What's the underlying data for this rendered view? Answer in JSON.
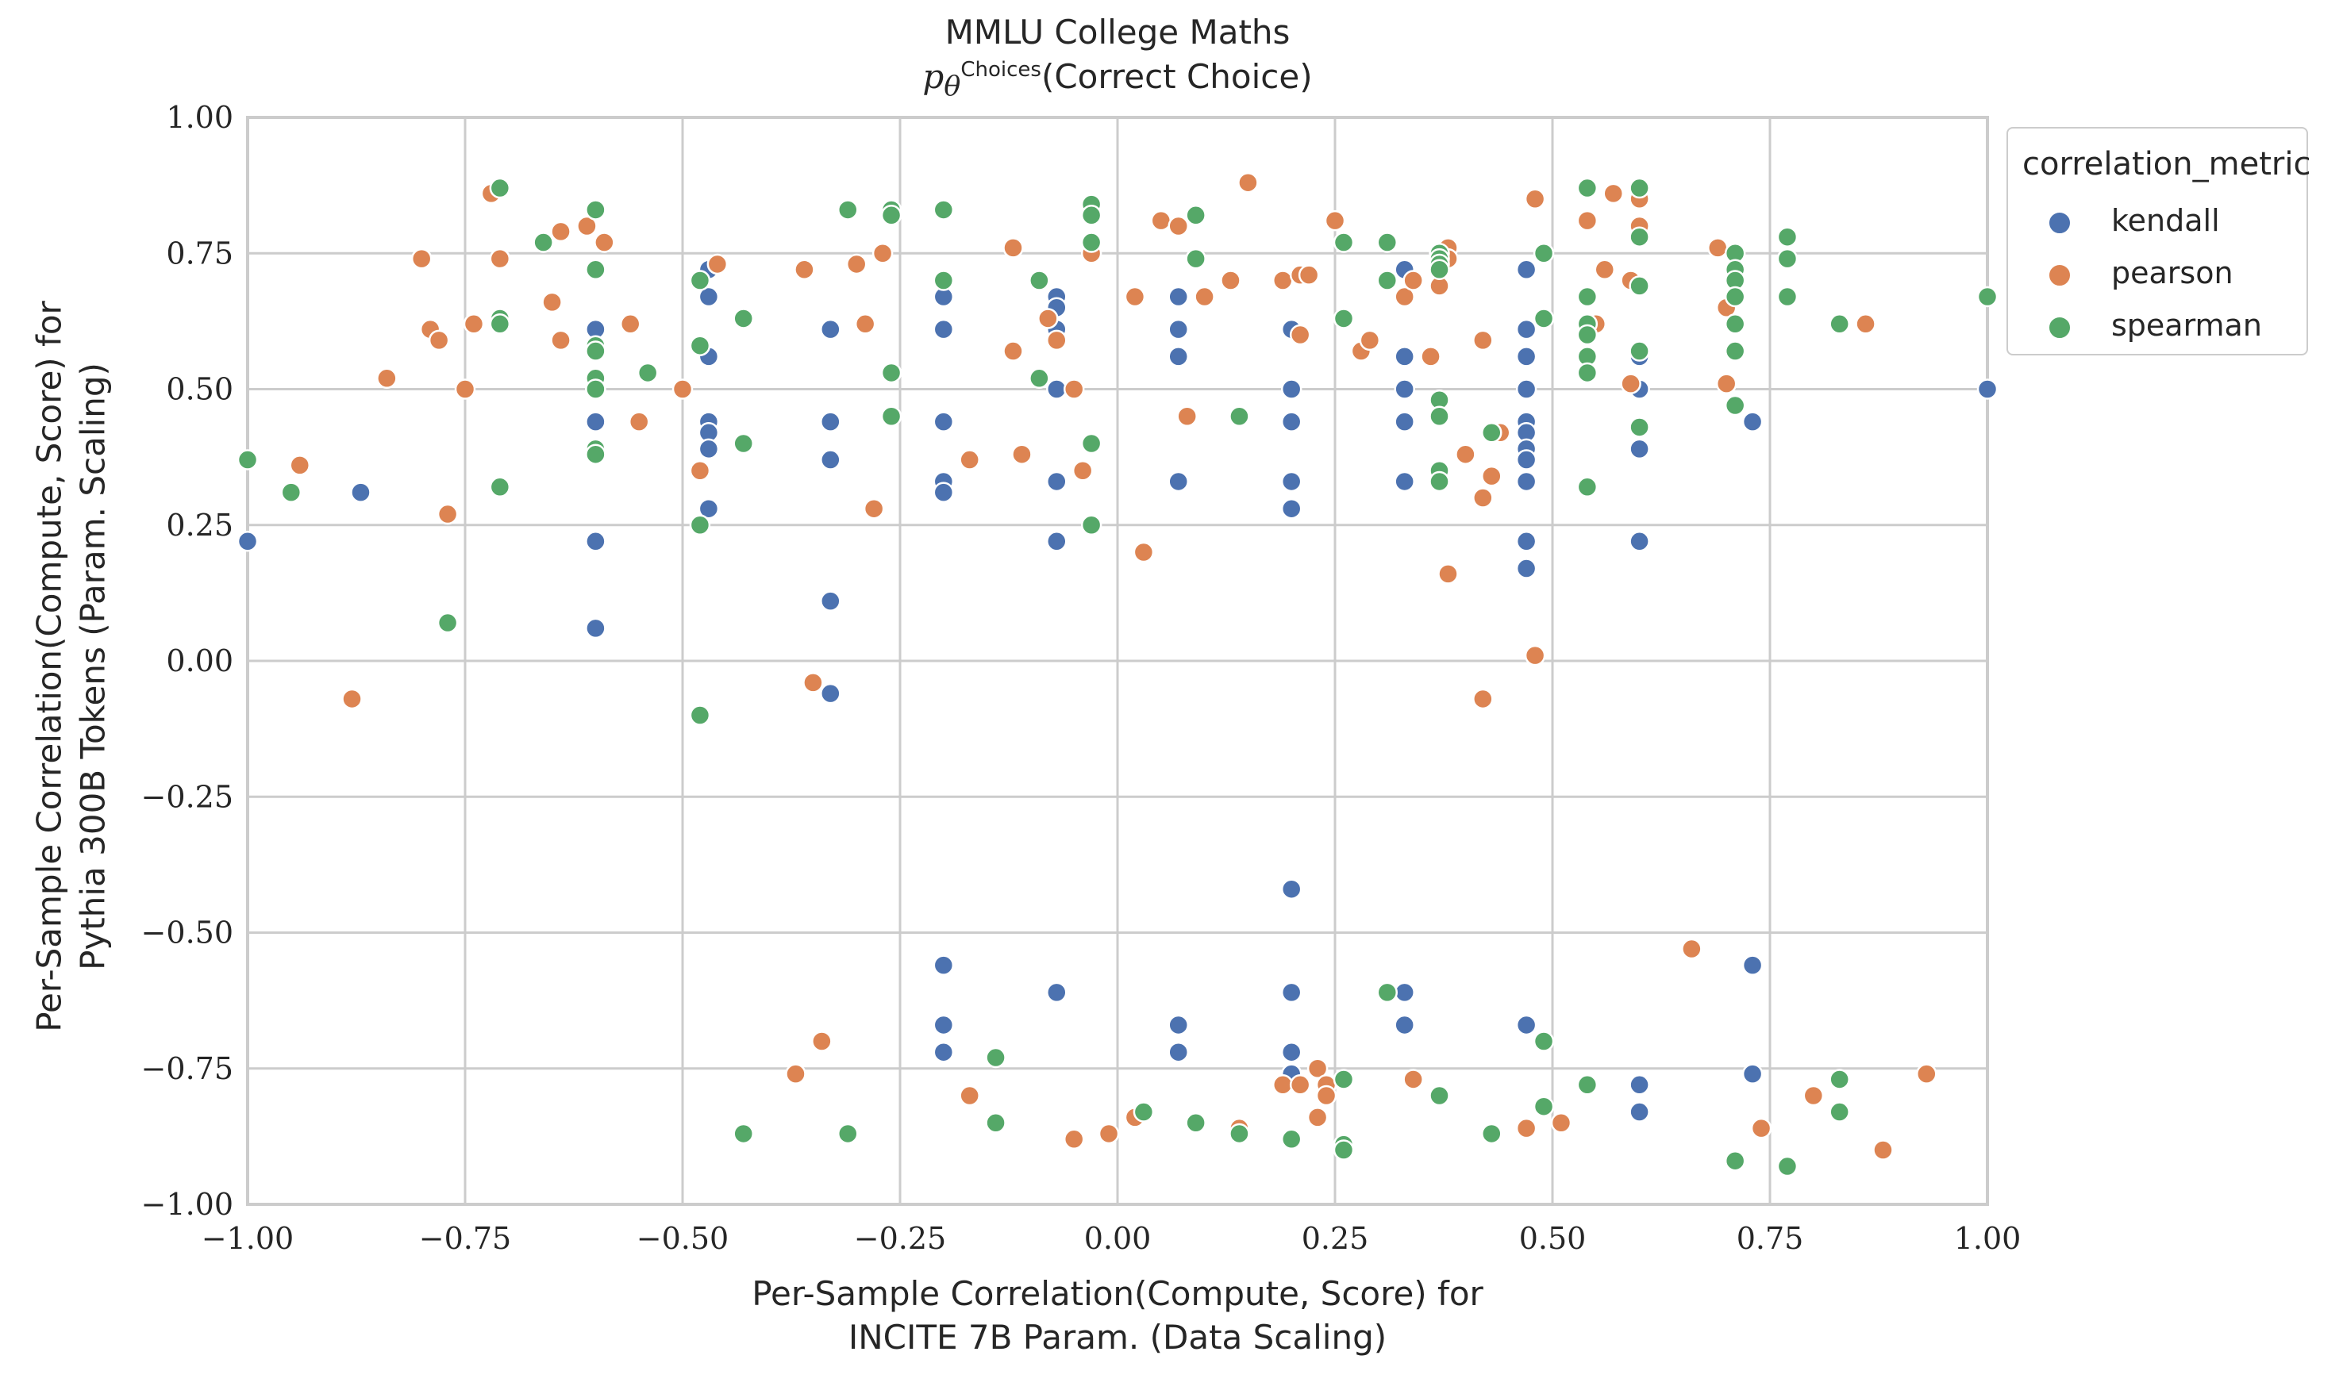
{
  "chart_data": {
    "type": "scatter",
    "title": "MMLU College Maths",
    "subtitle_math": "p",
    "subtitle_sub": "θ",
    "subtitle_sup": "Choices",
    "subtitle_text": "(Correct Choice)",
    "xlabel_line1": "Per-Sample Correlation(Compute, Score) for",
    "xlabel_line2": "INCITE 7B Param. (Data Scaling)",
    "ylabel_line1": "Per-Sample Correlation(Compute, Score) for",
    "ylabel_line2": "Pythia 300B Tokens (Param. Scaling)",
    "xlim": [
      -1.0,
      1.0
    ],
    "ylim": [
      -1.0,
      1.0
    ],
    "xticks": [
      "−1.00",
      "−0.75",
      "−0.50",
      "−0.25",
      "0.00",
      "0.25",
      "0.50",
      "0.75",
      "1.00"
    ],
    "yticks": [
      "1.00",
      "0.75",
      "0.50",
      "0.25",
      "0.00",
      "−0.25",
      "−0.50",
      "−0.75",
      "−1.00"
    ],
    "grid": true,
    "legend": {
      "title": "correlation_metric",
      "placement": "outside-top-right"
    },
    "series": [
      {
        "name": "kendall",
        "color": "#4c72b0",
        "points": [
          [
            -1.0,
            0.22
          ],
          [
            -0.87,
            0.31
          ],
          [
            -0.6,
            0.61
          ],
          [
            -0.6,
            0.5
          ],
          [
            -0.6,
            0.44
          ],
          [
            -0.6,
            0.22
          ],
          [
            -0.6,
            0.06
          ],
          [
            -0.6,
            0.39
          ],
          [
            -0.47,
            0.72
          ],
          [
            -0.47,
            0.67
          ],
          [
            -0.47,
            0.56
          ],
          [
            -0.47,
            0.44
          ],
          [
            -0.47,
            0.42
          ],
          [
            -0.47,
            0.39
          ],
          [
            -0.47,
            0.28
          ],
          [
            -0.33,
            0.61
          ],
          [
            -0.33,
            0.44
          ],
          [
            -0.33,
            0.37
          ],
          [
            -0.33,
            0.11
          ],
          [
            -0.33,
            -0.06
          ],
          [
            -0.2,
            0.67
          ],
          [
            -0.2,
            0.61
          ],
          [
            -0.2,
            0.44
          ],
          [
            -0.2,
            0.33
          ],
          [
            -0.2,
            0.31
          ],
          [
            -0.2,
            -0.56
          ],
          [
            -0.2,
            -0.67
          ],
          [
            -0.2,
            -0.72
          ],
          [
            -0.07,
            0.67
          ],
          [
            -0.07,
            0.65
          ],
          [
            -0.07,
            0.61
          ],
          [
            -0.07,
            0.5
          ],
          [
            -0.07,
            0.33
          ],
          [
            -0.07,
            0.22
          ],
          [
            -0.07,
            -0.61
          ],
          [
            0.07,
            0.67
          ],
          [
            0.07,
            0.61
          ],
          [
            0.07,
            0.56
          ],
          [
            0.07,
            0.33
          ],
          [
            0.07,
            -0.67
          ],
          [
            0.07,
            -0.72
          ],
          [
            0.2,
            0.61
          ],
          [
            0.2,
            0.5
          ],
          [
            0.2,
            0.44
          ],
          [
            0.2,
            0.33
          ],
          [
            0.2,
            0.28
          ],
          [
            0.2,
            -0.42
          ],
          [
            0.2,
            -0.61
          ],
          [
            0.2,
            -0.72
          ],
          [
            0.2,
            -0.76
          ],
          [
            0.33,
            0.72
          ],
          [
            0.33,
            0.56
          ],
          [
            0.33,
            0.5
          ],
          [
            0.33,
            0.44
          ],
          [
            0.33,
            0.33
          ],
          [
            0.33,
            -0.61
          ],
          [
            0.33,
            -0.67
          ],
          [
            0.47,
            0.72
          ],
          [
            0.47,
            0.61
          ],
          [
            0.47,
            0.56
          ],
          [
            0.47,
            0.5
          ],
          [
            0.47,
            0.44
          ],
          [
            0.47,
            0.42
          ],
          [
            0.47,
            0.39
          ],
          [
            0.47,
            0.37
          ],
          [
            0.47,
            0.33
          ],
          [
            0.47,
            0.22
          ],
          [
            0.47,
            0.17
          ],
          [
            0.47,
            -0.67
          ],
          [
            0.6,
            0.56
          ],
          [
            0.6,
            0.5
          ],
          [
            0.6,
            0.39
          ],
          [
            0.6,
            0.22
          ],
          [
            0.6,
            -0.78
          ],
          [
            0.6,
            -0.83
          ],
          [
            0.73,
            0.44
          ],
          [
            0.73,
            -0.56
          ],
          [
            0.73,
            -0.76
          ],
          [
            1.0,
            0.5
          ]
        ]
      },
      {
        "name": "pearson",
        "color": "#dd8452",
        "points": [
          [
            -0.94,
            0.36
          ],
          [
            -0.88,
            -0.07
          ],
          [
            -0.84,
            0.52
          ],
          [
            -0.8,
            0.74
          ],
          [
            -0.79,
            0.61
          ],
          [
            -0.78,
            0.59
          ],
          [
            -0.77,
            0.27
          ],
          [
            -0.75,
            0.5
          ],
          [
            -0.74,
            0.62
          ],
          [
            -0.72,
            0.86
          ],
          [
            -0.71,
            0.74
          ],
          [
            -0.65,
            0.66
          ],
          [
            -0.64,
            0.79
          ],
          [
            -0.64,
            0.59
          ],
          [
            -0.61,
            0.8
          ],
          [
            -0.59,
            0.77
          ],
          [
            -0.56,
            0.62
          ],
          [
            -0.55,
            0.44
          ],
          [
            -0.5,
            0.5
          ],
          [
            -0.48,
            0.35
          ],
          [
            -0.46,
            0.73
          ],
          [
            -0.36,
            0.72
          ],
          [
            -0.35,
            -0.04
          ],
          [
            -0.34,
            -0.7
          ],
          [
            -0.37,
            -0.76
          ],
          [
            -0.3,
            0.73
          ],
          [
            -0.29,
            0.62
          ],
          [
            -0.28,
            0.28
          ],
          [
            -0.27,
            0.75
          ],
          [
            -0.17,
            0.37
          ],
          [
            -0.12,
            0.76
          ],
          [
            -0.11,
            0.38
          ],
          [
            -0.12,
            0.57
          ],
          [
            -0.08,
            0.63
          ],
          [
            -0.07,
            0.59
          ],
          [
            -0.05,
            0.5
          ],
          [
            -0.04,
            0.35
          ],
          [
            -0.03,
            0.75
          ],
          [
            -0.17,
            -0.8
          ],
          [
            -0.05,
            -0.88
          ],
          [
            -0.01,
            -0.87
          ],
          [
            0.02,
            -0.84
          ],
          [
            0.02,
            0.67
          ],
          [
            0.03,
            0.2
          ],
          [
            0.05,
            0.81
          ],
          [
            0.07,
            0.8
          ],
          [
            0.08,
            0.45
          ],
          [
            0.1,
            0.67
          ],
          [
            0.13,
            0.7
          ],
          [
            0.15,
            0.88
          ],
          [
            0.14,
            -0.86
          ],
          [
            0.19,
            0.7
          ],
          [
            0.21,
            0.6
          ],
          [
            0.21,
            0.71
          ],
          [
            0.22,
            0.71
          ],
          [
            0.25,
            0.81
          ],
          [
            0.28,
            0.57
          ],
          [
            0.29,
            0.59
          ],
          [
            0.19,
            -0.78
          ],
          [
            0.21,
            -0.78
          ],
          [
            0.23,
            -0.84
          ],
          [
            0.23,
            -0.75
          ],
          [
            0.24,
            -0.78
          ],
          [
            0.24,
            -0.8
          ],
          [
            0.33,
            0.67
          ],
          [
            0.34,
            0.7
          ],
          [
            0.34,
            -0.77
          ],
          [
            0.36,
            0.56
          ],
          [
            0.37,
            0.69
          ],
          [
            0.38,
            0.76
          ],
          [
            0.38,
            0.74
          ],
          [
            0.38,
            0.16
          ],
          [
            0.4,
            0.38
          ],
          [
            0.42,
            0.59
          ],
          [
            0.42,
            0.3
          ],
          [
            0.42,
            -0.07
          ],
          [
            0.43,
            0.34
          ],
          [
            0.44,
            0.42
          ],
          [
            0.48,
            0.85
          ],
          [
            0.48,
            0.01
          ],
          [
            0.47,
            -0.86
          ],
          [
            0.51,
            -0.85
          ],
          [
            0.55,
            0.62
          ],
          [
            0.56,
            0.72
          ],
          [
            0.57,
            0.86
          ],
          [
            0.59,
            0.7
          ],
          [
            0.59,
            0.51
          ],
          [
            0.6,
            0.8
          ],
          [
            0.6,
            0.85
          ],
          [
            0.54,
            0.81
          ],
          [
            0.66,
            -0.53
          ],
          [
            0.69,
            0.76
          ],
          [
            0.7,
            0.65
          ],
          [
            0.7,
            0.51
          ],
          [
            0.71,
            0.62
          ],
          [
            0.74,
            -0.86
          ],
          [
            0.8,
            -0.8
          ],
          [
            0.86,
            0.62
          ],
          [
            0.88,
            -0.9
          ],
          [
            0.93,
            -0.76
          ]
        ]
      },
      {
        "name": "spearman",
        "color": "#55a868",
        "points": [
          [
            -1.0,
            0.37
          ],
          [
            -0.95,
            0.31
          ],
          [
            -0.77,
            0.07
          ],
          [
            -0.71,
            0.87
          ],
          [
            -0.71,
            0.63
          ],
          [
            -0.71,
            0.62
          ],
          [
            -0.71,
            0.32
          ],
          [
            -0.66,
            0.77
          ],
          [
            -0.6,
            0.83
          ],
          [
            -0.6,
            0.72
          ],
          [
            -0.6,
            0.58
          ],
          [
            -0.6,
            0.57
          ],
          [
            -0.6,
            0.52
          ],
          [
            -0.6,
            0.5
          ],
          [
            -0.6,
            0.39
          ],
          [
            -0.6,
            0.38
          ],
          [
            -0.54,
            0.53
          ],
          [
            -0.48,
            0.7
          ],
          [
            -0.48,
            0.58
          ],
          [
            -0.48,
            0.25
          ],
          [
            -0.48,
            -0.1
          ],
          [
            -0.43,
            0.63
          ],
          [
            -0.43,
            0.4
          ],
          [
            -0.43,
            -0.87
          ],
          [
            -0.31,
            0.83
          ],
          [
            -0.31,
            -0.87
          ],
          [
            -0.26,
            0.83
          ],
          [
            -0.26,
            0.82
          ],
          [
            -0.26,
            0.53
          ],
          [
            -0.26,
            0.45
          ],
          [
            -0.2,
            0.83
          ],
          [
            -0.2,
            0.7
          ],
          [
            -0.14,
            -0.73
          ],
          [
            -0.14,
            -0.85
          ],
          [
            -0.09,
            0.7
          ],
          [
            -0.09,
            0.52
          ],
          [
            -0.03,
            0.84
          ],
          [
            -0.03,
            0.82
          ],
          [
            -0.03,
            0.77
          ],
          [
            -0.03,
            0.4
          ],
          [
            -0.03,
            0.25
          ],
          [
            0.03,
            -0.83
          ],
          [
            0.09,
            0.82
          ],
          [
            0.09,
            0.74
          ],
          [
            0.09,
            -0.85
          ],
          [
            0.14,
            0.45
          ],
          [
            0.14,
            -0.87
          ],
          [
            0.2,
            -0.88
          ],
          [
            0.26,
            0.77
          ],
          [
            0.26,
            0.63
          ],
          [
            0.26,
            -0.77
          ],
          [
            0.26,
            -0.89
          ],
          [
            0.26,
            -0.9
          ],
          [
            0.31,
            0.77
          ],
          [
            0.31,
            0.7
          ],
          [
            0.31,
            -0.61
          ],
          [
            0.37,
            0.75
          ],
          [
            0.37,
            0.74
          ],
          [
            0.37,
            0.73
          ],
          [
            0.37,
            0.72
          ],
          [
            0.37,
            0.48
          ],
          [
            0.37,
            0.45
          ],
          [
            0.37,
            0.35
          ],
          [
            0.37,
            0.33
          ],
          [
            0.37,
            -0.8
          ],
          [
            0.43,
            0.42
          ],
          [
            0.43,
            -0.87
          ],
          [
            0.49,
            0.75
          ],
          [
            0.49,
            0.63
          ],
          [
            0.49,
            -0.7
          ],
          [
            0.49,
            -0.82
          ],
          [
            0.54,
            0.87
          ],
          [
            0.54,
            0.67
          ],
          [
            0.54,
            0.62
          ],
          [
            0.54,
            0.6
          ],
          [
            0.54,
            0.56
          ],
          [
            0.54,
            0.53
          ],
          [
            0.54,
            0.32
          ],
          [
            0.54,
            -0.78
          ],
          [
            0.6,
            0.87
          ],
          [
            0.6,
            0.78
          ],
          [
            0.6,
            0.69
          ],
          [
            0.6,
            0.57
          ],
          [
            0.6,
            0.43
          ],
          [
            0.71,
            0.75
          ],
          [
            0.71,
            0.72
          ],
          [
            0.71,
            0.7
          ],
          [
            0.71,
            0.67
          ],
          [
            0.71,
            0.62
          ],
          [
            0.71,
            0.57
          ],
          [
            0.71,
            0.47
          ],
          [
            0.71,
            -0.92
          ],
          [
            0.77,
            0.78
          ],
          [
            0.77,
            0.74
          ],
          [
            0.77,
            0.67
          ],
          [
            0.77,
            -0.93
          ],
          [
            0.83,
            0.62
          ],
          [
            0.83,
            -0.77
          ],
          [
            0.83,
            -0.83
          ],
          [
            1.0,
            0.67
          ]
        ]
      }
    ]
  }
}
